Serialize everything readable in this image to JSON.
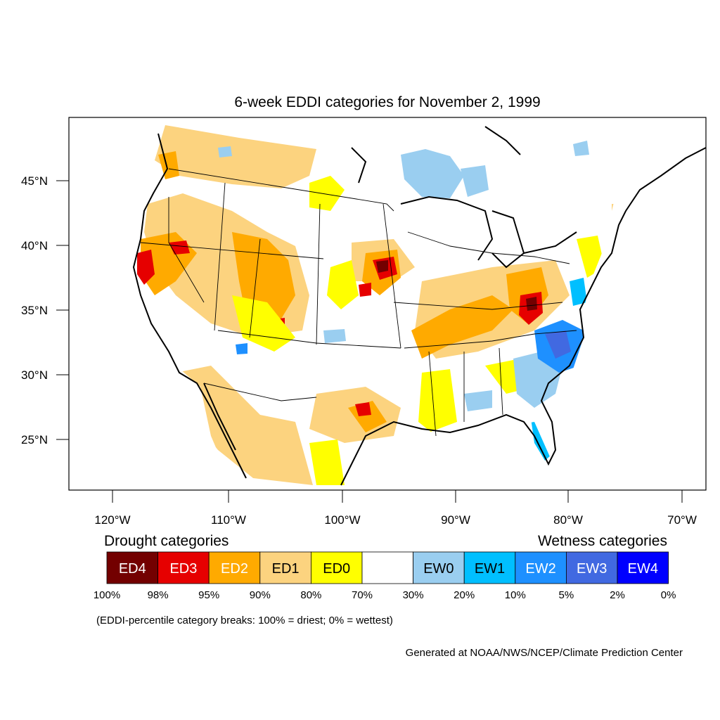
{
  "title": "6-week EDDI categories for November 2, 1999",
  "map": {
    "projection": "lambert-conformal-conus",
    "lon_range": [
      -125,
      -68
    ],
    "lat_range": [
      21,
      50
    ],
    "lat_ticks": [
      "45°N",
      "40°N",
      "35°N",
      "30°N",
      "25°N"
    ],
    "lon_ticks": [
      "120°W",
      "110°W",
      "100°W",
      "90°W",
      "80°W",
      "70°W"
    ]
  },
  "legend": {
    "drought_heading": "Drought categories",
    "wetness_heading": "Wetness categories",
    "categories": [
      {
        "label": "ED4",
        "color": "#730000",
        "text_color": "#ffffff"
      },
      {
        "label": "ED3",
        "color": "#e60000",
        "text_color": "#ffffff"
      },
      {
        "label": "ED2",
        "color": "#ffaa00",
        "text_color": "#ffffff"
      },
      {
        "label": "ED1",
        "color": "#fcd37f",
        "text_color": "#000000"
      },
      {
        "label": "ED0",
        "color": "#ffff00",
        "text_color": "#000000"
      },
      {
        "label": "",
        "color": "#ffffff",
        "text_color": "#000000"
      },
      {
        "label": "EW0",
        "color": "#9acef0",
        "text_color": "#000000"
      },
      {
        "label": "EW1",
        "color": "#00bfff",
        "text_color": "#000000"
      },
      {
        "label": "EW2",
        "color": "#1e90ff",
        "text_color": "#ffffff"
      },
      {
        "label": "EW3",
        "color": "#4169e1",
        "text_color": "#ffffff"
      },
      {
        "label": "EW4",
        "color": "#0000ff",
        "text_color": "#ffffff"
      }
    ],
    "breaks": [
      "100%",
      "98%",
      "95%",
      "90%",
      "80%",
      "70%",
      "30%",
      "20%",
      "10%",
      "5%",
      "2%",
      "0%"
    ],
    "note": "(EDDI-percentile category breaks: 100% = driest; 0% = wettest)"
  },
  "credit": "Generated at NOAA/NWS/NCEP/Climate Prediction Center"
}
